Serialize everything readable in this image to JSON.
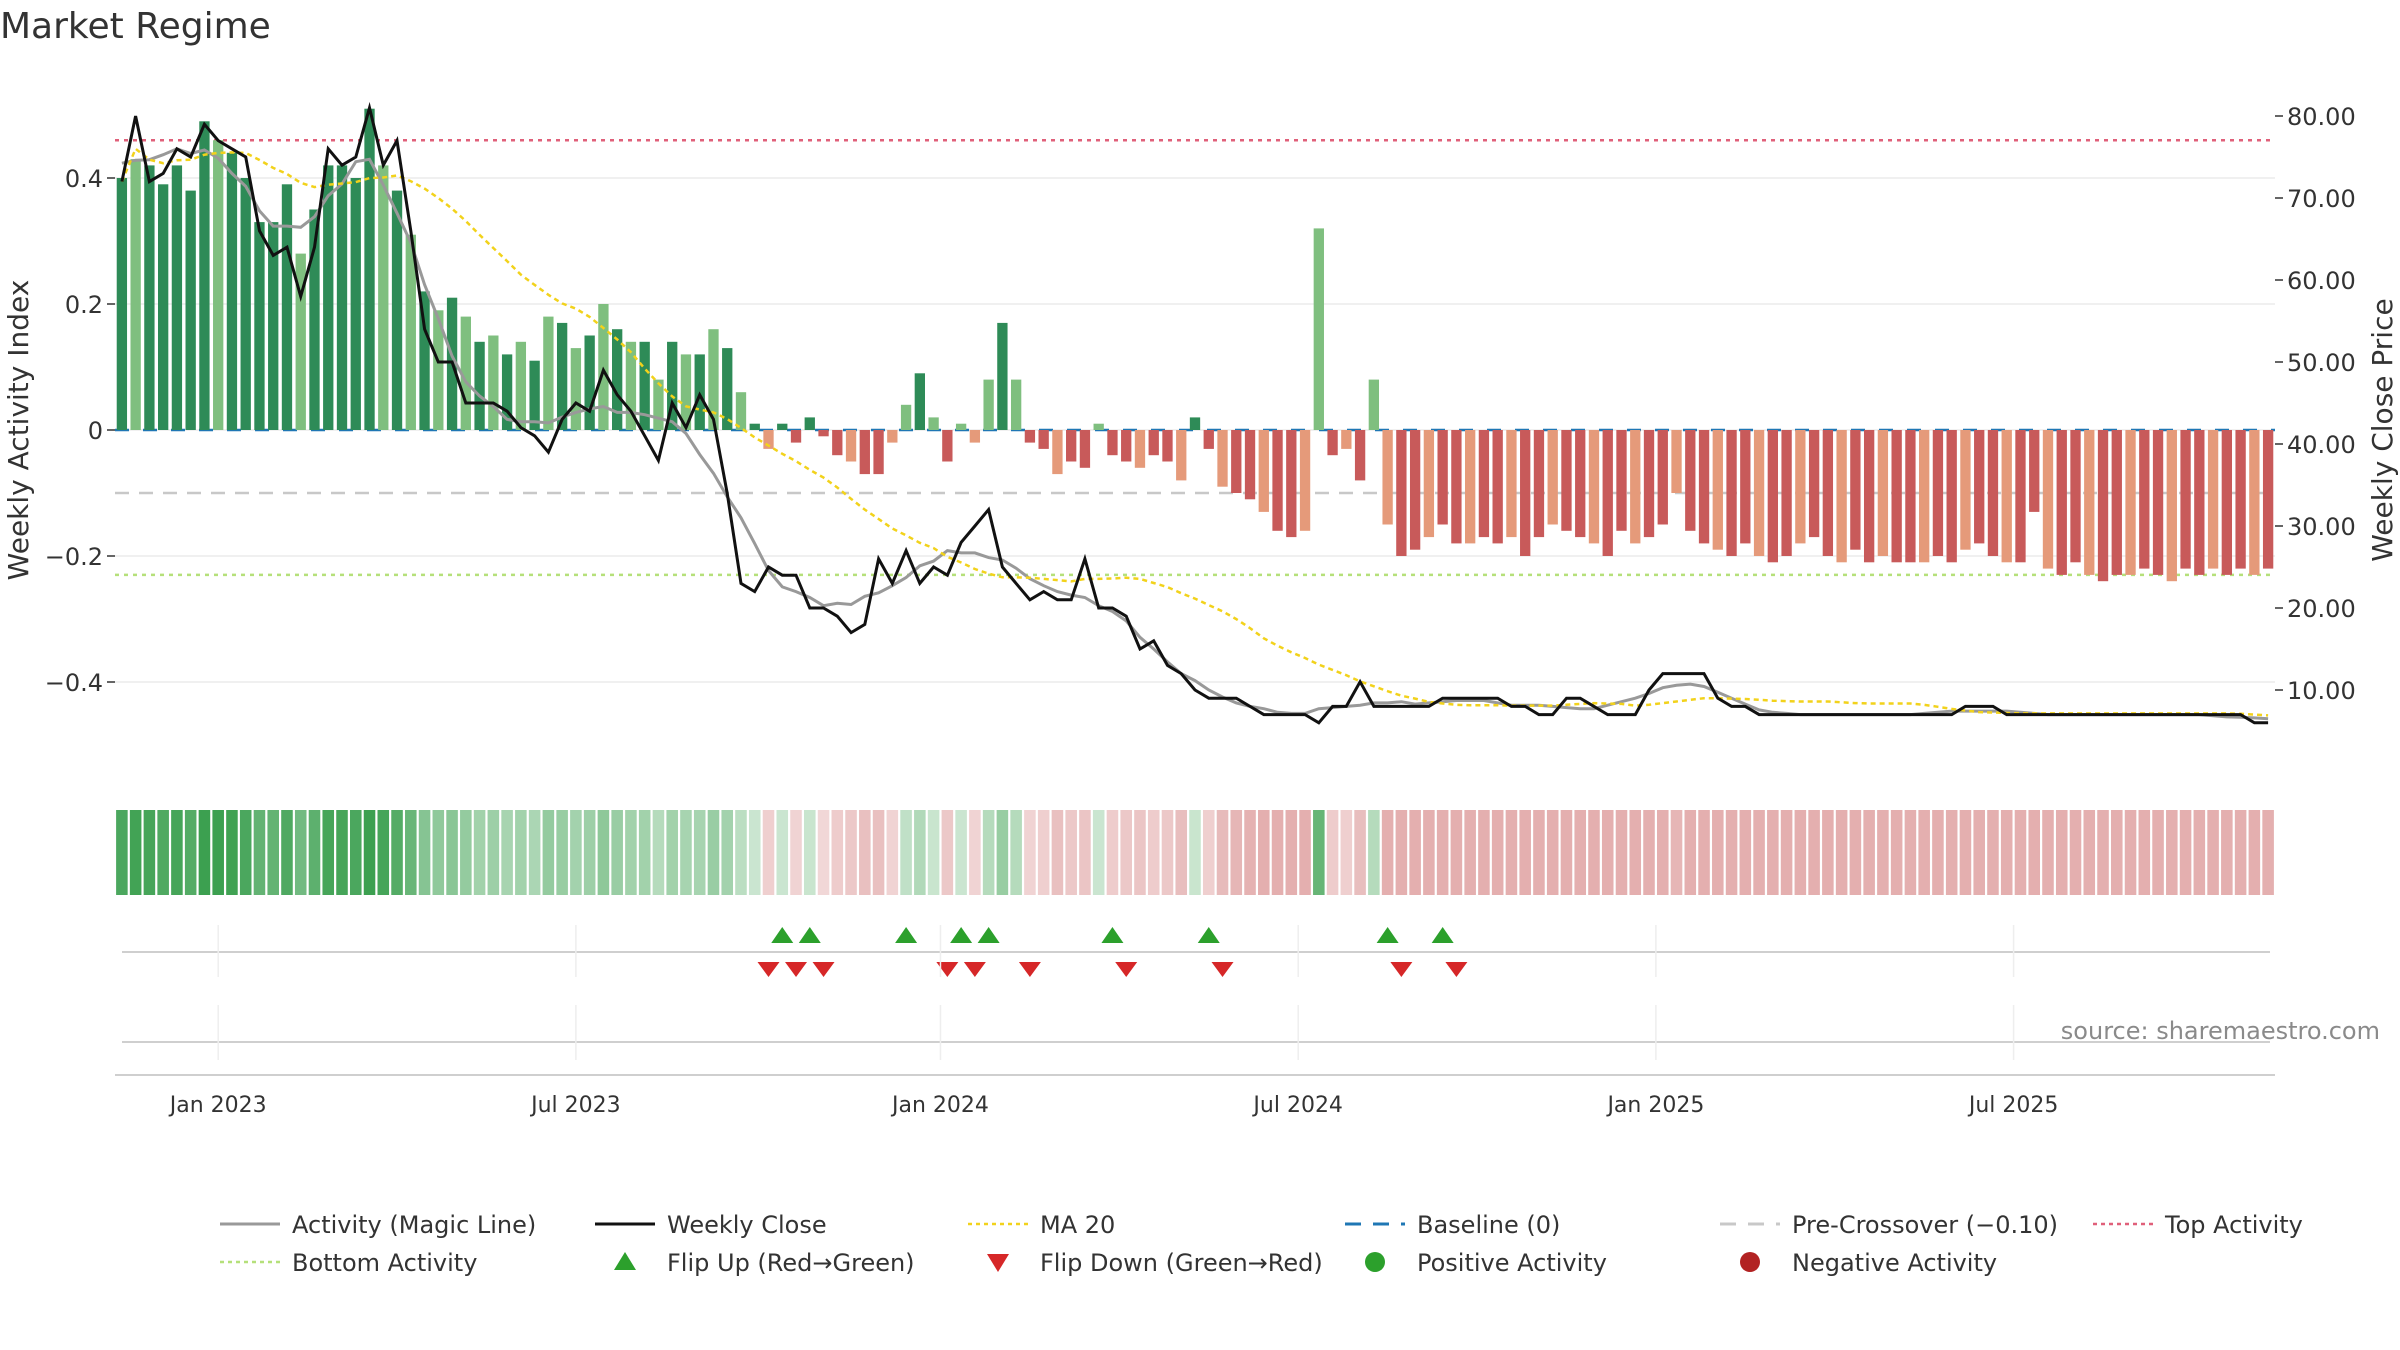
{
  "chart_data": {
    "type": "bar+line",
    "title": "Market Regime",
    "ylabel_left": "Weekly Activity Index",
    "ylabel_right": "Weekly Close Price",
    "source": "source: sharemaestro.com",
    "left_ylim": [
      -0.55,
      0.55
    ],
    "right_ylim": [
      0,
      86.5
    ],
    "left_ticks": [
      {
        "v": 0.4,
        "label": "0.4"
      },
      {
        "v": 0.2,
        "label": "0.2"
      },
      {
        "v": 0,
        "label": "0"
      },
      {
        "v": -0.2,
        "label": "−0.2"
      },
      {
        "v": -0.4,
        "label": "−0.4"
      }
    ],
    "right_ticks": [
      {
        "v": 80,
        "label": "80.00"
      },
      {
        "v": 70,
        "label": "70.00"
      },
      {
        "v": 60,
        "label": "60.00"
      },
      {
        "v": 50,
        "label": "50.00"
      },
      {
        "v": 40,
        "label": "40.00"
      },
      {
        "v": 30,
        "label": "30.00"
      },
      {
        "v": 20,
        "label": "20.00"
      },
      {
        "v": 10,
        "label": "10.00"
      }
    ],
    "x_ticks": [
      {
        "week": 7,
        "label": "Jan 2023"
      },
      {
        "week": 33,
        "label": "Jul 2023"
      },
      {
        "week": 59.5,
        "label": "Jan 2024"
      },
      {
        "week": 85.5,
        "label": "Jul 2024"
      },
      {
        "week": 111.5,
        "label": "Jan 2025"
      },
      {
        "week": 137.5,
        "label": "Jul 2025"
      }
    ],
    "weeks": 157,
    "reference_lines": {
      "top_activity": 0.46,
      "bottom_activity": -0.23,
      "pre_crossover": -0.1,
      "baseline": 0
    },
    "activity_anchors": [
      [
        0,
        0.4
      ],
      [
        1,
        0.43
      ],
      [
        2,
        0.42
      ],
      [
        3,
        0.39
      ],
      [
        4,
        0.42
      ],
      [
        5,
        0.38
      ],
      [
        6,
        0.49
      ],
      [
        7,
        0.46
      ],
      [
        8,
        0.44
      ],
      [
        9,
        0.4
      ],
      [
        10,
        0.33
      ],
      [
        11,
        0.33
      ],
      [
        12,
        0.39
      ],
      [
        13,
        0.28
      ],
      [
        14,
        0.35
      ],
      [
        15,
        0.42
      ],
      [
        16,
        0.42
      ],
      [
        17,
        0.4
      ],
      [
        18,
        0.51
      ],
      [
        19,
        0.42
      ],
      [
        20,
        0.38
      ],
      [
        21,
        0.31
      ],
      [
        22,
        0.22
      ],
      [
        23,
        0.19
      ],
      [
        24,
        0.21
      ],
      [
        25,
        0.18
      ],
      [
        26,
        0.14
      ],
      [
        27,
        0.15
      ],
      [
        28,
        0.12
      ],
      [
        29,
        0.14
      ],
      [
        30,
        0.11
      ],
      [
        31,
        0.18
      ],
      [
        32,
        0.17
      ],
      [
        33,
        0.13
      ],
      [
        34,
        0.15
      ],
      [
        35,
        0.2
      ],
      [
        36,
        0.16
      ],
      [
        37,
        0.14
      ],
      [
        38,
        0.14
      ],
      [
        39,
        0.08
      ],
      [
        40,
        0.14
      ],
      [
        41,
        0.12
      ],
      [
        42,
        0.12
      ],
      [
        43,
        0.16
      ],
      [
        44,
        0.13
      ],
      [
        45,
        0.06
      ],
      [
        46,
        0.01
      ],
      [
        47,
        -0.03
      ],
      [
        48,
        0.01
      ],
      [
        49,
        -0.02
      ],
      [
        50,
        0.02
      ],
      [
        51,
        -0.01
      ],
      [
        52,
        -0.04
      ],
      [
        53,
        -0.05
      ],
      [
        54,
        -0.07
      ],
      [
        55,
        -0.07
      ],
      [
        56,
        -0.02
      ],
      [
        57,
        0.04
      ],
      [
        58,
        0.09
      ],
      [
        59,
        0.02
      ],
      [
        60,
        -0.05
      ],
      [
        61,
        0.01
      ],
      [
        62,
        -0.02
      ],
      [
        63,
        0.08
      ],
      [
        64,
        0.17
      ],
      [
        65,
        0.08
      ],
      [
        66,
        -0.02
      ],
      [
        67,
        -0.03
      ],
      [
        68,
        -0.07
      ],
      [
        69,
        -0.05
      ],
      [
        70,
        -0.06
      ],
      [
        71,
        0.01
      ],
      [
        72,
        -0.04
      ],
      [
        73,
        -0.05
      ],
      [
        74,
        -0.06
      ],
      [
        75,
        -0.04
      ],
      [
        76,
        -0.05
      ],
      [
        77,
        -0.08
      ],
      [
        78,
        0.02
      ],
      [
        79,
        -0.03
      ],
      [
        80,
        -0.09
      ],
      [
        81,
        -0.1
      ],
      [
        82,
        -0.11
      ],
      [
        83,
        -0.13
      ],
      [
        84,
        -0.16
      ],
      [
        85,
        -0.17
      ],
      [
        86,
        -0.16
      ],
      [
        87,
        0.32
      ],
      [
        88,
        -0.04
      ],
      [
        89,
        -0.03
      ],
      [
        90,
        -0.08
      ],
      [
        91,
        0.08
      ],
      [
        92,
        -0.15
      ],
      [
        93,
        -0.2
      ],
      [
        94,
        -0.19
      ],
      [
        95,
        -0.17
      ],
      [
        96,
        -0.15
      ],
      [
        97,
        -0.18
      ],
      [
        98,
        -0.18
      ],
      [
        99,
        -0.17
      ],
      [
        100,
        -0.18
      ],
      [
        101,
        -0.17
      ],
      [
        102,
        -0.2
      ],
      [
        103,
        -0.17
      ],
      [
        104,
        -0.15
      ],
      [
        105,
        -0.16
      ],
      [
        106,
        -0.17
      ],
      [
        107,
        -0.18
      ],
      [
        108,
        -0.2
      ],
      [
        109,
        -0.16
      ],
      [
        110,
        -0.18
      ],
      [
        111,
        -0.17
      ],
      [
        112,
        -0.15
      ],
      [
        113,
        -0.1
      ],
      [
        114,
        -0.16
      ],
      [
        115,
        -0.18
      ],
      [
        116,
        -0.19
      ],
      [
        117,
        -0.2
      ],
      [
        118,
        -0.18
      ],
      [
        119,
        -0.2
      ],
      [
        120,
        -0.21
      ],
      [
        121,
        -0.2
      ],
      [
        122,
        -0.18
      ],
      [
        123,
        -0.17
      ],
      [
        124,
        -0.2
      ],
      [
        125,
        -0.21
      ],
      [
        126,
        -0.19
      ],
      [
        127,
        -0.21
      ],
      [
        128,
        -0.2
      ],
      [
        129,
        -0.21
      ],
      [
        130,
        -0.21
      ],
      [
        131,
        -0.21
      ],
      [
        132,
        -0.2
      ],
      [
        133,
        -0.21
      ],
      [
        134,
        -0.19
      ],
      [
        135,
        -0.18
      ],
      [
        136,
        -0.2
      ],
      [
        137,
        -0.21
      ],
      [
        138,
        -0.21
      ],
      [
        139,
        -0.13
      ],
      [
        140,
        -0.22
      ],
      [
        141,
        -0.23
      ],
      [
        142,
        -0.21
      ],
      [
        143,
        -0.23
      ],
      [
        144,
        -0.24
      ],
      [
        145,
        -0.23
      ],
      [
        146,
        -0.23
      ],
      [
        147,
        -0.22
      ],
      [
        148,
        -0.23
      ],
      [
        149,
        -0.24
      ],
      [
        150,
        -0.22
      ],
      [
        151,
        -0.23
      ],
      [
        152,
        -0.22
      ],
      [
        153,
        -0.23
      ],
      [
        154,
        -0.22
      ],
      [
        155,
        -0.23
      ],
      [
        156,
        -0.22
      ]
    ],
    "close_anchors": [
      [
        0,
        72
      ],
      [
        1,
        80
      ],
      [
        2,
        72
      ],
      [
        3,
        73
      ],
      [
        4,
        76
      ],
      [
        5,
        75
      ],
      [
        6,
        79
      ],
      [
        7,
        77
      ],
      [
        8,
        76
      ],
      [
        9,
        75
      ],
      [
        10,
        66
      ],
      [
        11,
        63
      ],
      [
        12,
        64
      ],
      [
        13,
        58
      ],
      [
        14,
        64
      ],
      [
        15,
        76
      ],
      [
        16,
        74
      ],
      [
        17,
        75
      ],
      [
        18,
        81
      ],
      [
        19,
        74
      ],
      [
        20,
        77
      ],
      [
        21,
        66
      ],
      [
        22,
        54
      ],
      [
        23,
        50
      ],
      [
        24,
        50
      ],
      [
        25,
        45
      ],
      [
        26,
        45
      ],
      [
        27,
        45
      ],
      [
        28,
        44
      ],
      [
        29,
        42
      ],
      [
        30,
        41
      ],
      [
        31,
        39
      ],
      [
        32,
        43
      ],
      [
        33,
        45
      ],
      [
        34,
        44
      ],
      [
        35,
        49
      ],
      [
        36,
        46
      ],
      [
        37,
        44
      ],
      [
        38,
        41
      ],
      [
        39,
        38
      ],
      [
        40,
        45
      ],
      [
        41,
        42
      ],
      [
        42,
        46
      ],
      [
        43,
        43
      ],
      [
        44,
        34
      ],
      [
        45,
        23
      ],
      [
        46,
        22
      ],
      [
        47,
        25
      ],
      [
        48,
        24
      ],
      [
        49,
        24
      ],
      [
        50,
        20
      ],
      [
        51,
        20
      ],
      [
        52,
        19
      ],
      [
        53,
        17
      ],
      [
        54,
        18
      ],
      [
        55,
        26
      ],
      [
        56,
        23
      ],
      [
        57,
        27
      ],
      [
        58,
        23
      ],
      [
        59,
        25
      ],
      [
        60,
        24
      ],
      [
        61,
        28
      ],
      [
        62,
        30
      ],
      [
        63,
        32
      ],
      [
        64,
        25
      ],
      [
        65,
        23
      ],
      [
        66,
        21
      ],
      [
        67,
        22
      ],
      [
        68,
        21
      ],
      [
        69,
        21
      ],
      [
        70,
        26
      ],
      [
        71,
        20
      ],
      [
        72,
        20
      ],
      [
        73,
        19
      ],
      [
        74,
        15
      ],
      [
        75,
        16
      ],
      [
        76,
        13
      ],
      [
        77,
        12
      ],
      [
        78,
        10
      ],
      [
        79,
        9
      ],
      [
        80,
        9
      ],
      [
        81,
        9
      ],
      [
        82,
        8
      ],
      [
        83,
        7
      ],
      [
        84,
        7
      ],
      [
        85,
        7
      ],
      [
        86,
        7
      ],
      [
        87,
        6
      ],
      [
        88,
        8
      ],
      [
        89,
        8
      ],
      [
        90,
        11
      ],
      [
        91,
        8
      ],
      [
        92,
        8
      ],
      [
        93,
        8
      ],
      [
        94,
        8
      ],
      [
        95,
        8
      ],
      [
        96,
        9
      ],
      [
        97,
        9
      ],
      [
        98,
        9
      ],
      [
        99,
        9
      ],
      [
        100,
        9
      ],
      [
        101,
        8
      ],
      [
        102,
        8
      ],
      [
        103,
        7
      ],
      [
        104,
        7
      ],
      [
        105,
        9
      ],
      [
        106,
        9
      ],
      [
        107,
        8
      ],
      [
        108,
        7
      ],
      [
        109,
        7
      ],
      [
        110,
        7
      ],
      [
        111,
        10
      ],
      [
        112,
        12
      ],
      [
        113,
        12
      ],
      [
        114,
        12
      ],
      [
        115,
        12
      ],
      [
        116,
        9
      ],
      [
        117,
        8
      ],
      [
        118,
        8
      ],
      [
        119,
        7
      ],
      [
        120,
        7
      ],
      [
        121,
        7
      ],
      [
        122,
        7
      ],
      [
        123,
        7
      ],
      [
        124,
        7
      ],
      [
        125,
        7
      ],
      [
        126,
        7
      ],
      [
        127,
        7
      ],
      [
        128,
        7
      ],
      [
        129,
        7
      ],
      [
        130,
        7
      ],
      [
        131,
        7
      ],
      [
        132,
        7
      ],
      [
        133,
        7
      ],
      [
        134,
        8
      ],
      [
        135,
        8
      ],
      [
        136,
        8
      ],
      [
        137,
        7
      ],
      [
        138,
        7
      ],
      [
        139,
        7
      ],
      [
        140,
        7
      ],
      [
        141,
        7
      ],
      [
        142,
        7
      ],
      [
        143,
        7
      ],
      [
        144,
        7
      ],
      [
        145,
        7
      ],
      [
        146,
        7
      ],
      [
        147,
        7
      ],
      [
        148,
        7
      ],
      [
        149,
        7
      ],
      [
        150,
        7
      ],
      [
        151,
        7
      ],
      [
        152,
        7
      ],
      [
        153,
        7
      ],
      [
        154,
        7
      ],
      [
        155,
        6
      ],
      [
        156,
        6
      ]
    ],
    "flip_up_weeks": [
      48,
      50,
      57,
      61,
      63,
      72,
      79,
      92,
      96
    ],
    "flip_down_weeks": [
      47,
      49,
      51,
      60,
      62,
      66,
      73,
      80,
      93,
      97
    ],
    "colors": {
      "positive_strong": "#2e8b57",
      "positive_light": "#7fbf7f",
      "negative_strong": "#c85a5a",
      "negative_light": "#e59a7a",
      "magic_line": "#999999",
      "close": "#111111",
      "ma20": "#f2d21b",
      "baseline": "#1f77b4",
      "pre_crossover": "#c8c8c8",
      "top_activity": "#e0607a",
      "bottom_activity": "#b5e07a",
      "flip_up": "#2ca02c",
      "flip_down": "#d62728"
    },
    "legend": [
      {
        "label": "Activity (Magic Line)",
        "kind": "line",
        "color": "#999999"
      },
      {
        "label": "Weekly Close",
        "kind": "line",
        "color": "#111111"
      },
      {
        "label": "MA 20",
        "kind": "dotted",
        "color": "#f2d21b"
      },
      {
        "label": "Baseline (0)",
        "kind": "dashed",
        "color": "#1f77b4"
      },
      {
        "label": "Pre-Crossover (−0.10)",
        "kind": "dashed",
        "color": "#c8c8c8"
      },
      {
        "label": "Top Activity",
        "kind": "dotted",
        "color": "#e0607a"
      },
      {
        "label": "Bottom Activity",
        "kind": "dotted",
        "color": "#b5e07a"
      },
      {
        "label": "Flip Up (Red→Green)",
        "kind": "tri-up",
        "color": "#2ca02c"
      },
      {
        "label": "Flip Down (Green→Red)",
        "kind": "tri-down",
        "color": "#d62728"
      },
      {
        "label": "Positive Activity",
        "kind": "dot",
        "color": "#2ca02c"
      },
      {
        "label": "Negative Activity",
        "kind": "dot",
        "color": "#b22222"
      }
    ]
  }
}
